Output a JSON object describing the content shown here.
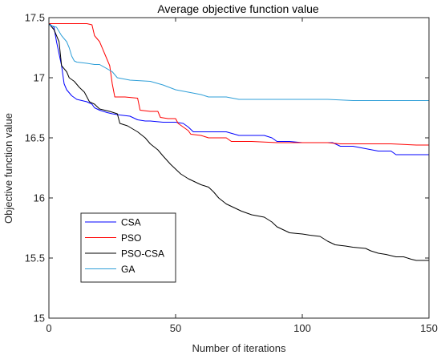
{
  "chart_data": {
    "type": "line",
    "title": "Average objective function value",
    "xlabel": "Number of iterations",
    "ylabel": "Objective function value",
    "xlim": [
      0,
      150
    ],
    "ylim": [
      15,
      17.5
    ],
    "xticks": [
      "0",
      "50",
      "100",
      "150"
    ],
    "yticks": [
      "15",
      "15.5",
      "16",
      "16.5",
      "17",
      "17.5"
    ],
    "grid": false,
    "legend_position": "lower-left",
    "series": [
      {
        "name": "CSA",
        "color": "#0000ff",
        "points": [
          [
            0,
            17.45
          ],
          [
            2,
            17.42
          ],
          [
            3,
            17.3
          ],
          [
            5,
            17.1
          ],
          [
            6,
            16.95
          ],
          [
            7,
            16.9
          ],
          [
            9,
            16.85
          ],
          [
            11,
            16.82
          ],
          [
            13,
            16.81
          ],
          [
            15,
            16.8
          ],
          [
            17,
            16.78
          ],
          [
            18,
            16.75
          ],
          [
            20,
            16.73
          ],
          [
            23,
            16.71
          ],
          [
            25,
            16.7
          ],
          [
            28,
            16.69
          ],
          [
            32,
            16.68
          ],
          [
            35,
            16.65
          ],
          [
            38,
            16.64
          ],
          [
            40,
            16.64
          ],
          [
            45,
            16.63
          ],
          [
            50,
            16.63
          ],
          [
            53,
            16.62
          ],
          [
            55,
            16.59
          ],
          [
            57,
            16.55
          ],
          [
            60,
            16.55
          ],
          [
            65,
            16.55
          ],
          [
            70,
            16.55
          ],
          [
            75,
            16.52
          ],
          [
            85,
            16.52
          ],
          [
            88,
            16.5
          ],
          [
            90,
            16.47
          ],
          [
            95,
            16.47
          ],
          [
            100,
            16.46
          ],
          [
            112,
            16.46
          ],
          [
            115,
            16.43
          ],
          [
            120,
            16.43
          ],
          [
            125,
            16.41
          ],
          [
            130,
            16.39
          ],
          [
            135,
            16.39
          ],
          [
            137,
            16.36
          ],
          [
            140,
            16.36
          ],
          [
            145,
            16.36
          ],
          [
            150,
            16.36
          ]
        ]
      },
      {
        "name": "PSO",
        "color": "#ff0000",
        "points": [
          [
            0,
            17.45
          ],
          [
            5,
            17.45
          ],
          [
            10,
            17.45
          ],
          [
            15,
            17.45
          ],
          [
            17,
            17.44
          ],
          [
            18,
            17.35
          ],
          [
            20,
            17.3
          ],
          [
            22,
            17.2
          ],
          [
            24,
            17.1
          ],
          [
            25,
            16.95
          ],
          [
            26,
            16.84
          ],
          [
            30,
            16.84
          ],
          [
            35,
            16.83
          ],
          [
            36,
            16.73
          ],
          [
            40,
            16.72
          ],
          [
            43,
            16.72
          ],
          [
            44,
            16.67
          ],
          [
            47,
            16.66
          ],
          [
            50,
            16.66
          ],
          [
            51,
            16.62
          ],
          [
            55,
            16.56
          ],
          [
            56,
            16.53
          ],
          [
            60,
            16.52
          ],
          [
            63,
            16.5
          ],
          [
            70,
            16.5
          ],
          [
            72,
            16.47
          ],
          [
            80,
            16.47
          ],
          [
            90,
            16.46
          ],
          [
            100,
            16.46
          ],
          [
            110,
            16.46
          ],
          [
            115,
            16.45
          ],
          [
            125,
            16.45
          ],
          [
            135,
            16.45
          ],
          [
            145,
            16.44
          ],
          [
            150,
            16.44
          ]
        ]
      },
      {
        "name": "PSO-CSA",
        "color": "#000000",
        "points": [
          [
            0,
            17.45
          ],
          [
            2,
            17.4
          ],
          [
            4,
            17.3
          ],
          [
            5,
            17.1
          ],
          [
            7,
            17.05
          ],
          [
            8,
            17.0
          ],
          [
            10,
            16.97
          ],
          [
            12,
            16.92
          ],
          [
            14,
            16.88
          ],
          [
            16,
            16.8
          ],
          [
            18,
            16.78
          ],
          [
            20,
            16.74
          ],
          [
            24,
            16.72
          ],
          [
            27,
            16.7
          ],
          [
            28,
            16.62
          ],
          [
            31,
            16.6
          ],
          [
            35,
            16.55
          ],
          [
            38,
            16.5
          ],
          [
            40,
            16.45
          ],
          [
            43,
            16.4
          ],
          [
            45,
            16.35
          ],
          [
            48,
            16.28
          ],
          [
            50,
            16.24
          ],
          [
            52,
            16.2
          ],
          [
            55,
            16.16
          ],
          [
            58,
            16.13
          ],
          [
            60,
            16.11
          ],
          [
            63,
            16.09
          ],
          [
            65,
            16.05
          ],
          [
            67,
            16.0
          ],
          [
            70,
            15.95
          ],
          [
            73,
            15.92
          ],
          [
            76,
            15.89
          ],
          [
            80,
            15.86
          ],
          [
            85,
            15.84
          ],
          [
            88,
            15.8
          ],
          [
            90,
            15.76
          ],
          [
            93,
            15.73
          ],
          [
            95,
            15.71
          ],
          [
            100,
            15.7
          ],
          [
            103,
            15.69
          ],
          [
            107,
            15.68
          ],
          [
            110,
            15.64
          ],
          [
            113,
            15.61
          ],
          [
            117,
            15.6
          ],
          [
            120,
            15.59
          ],
          [
            125,
            15.58
          ],
          [
            127,
            15.56
          ],
          [
            130,
            15.54
          ],
          [
            133,
            15.53
          ],
          [
            137,
            15.51
          ],
          [
            140,
            15.51
          ],
          [
            143,
            15.49
          ],
          [
            145,
            15.48
          ],
          [
            150,
            15.48
          ]
        ]
      },
      {
        "name": "GA",
        "color": "#2f9fd8",
        "points": [
          [
            0,
            17.44
          ],
          [
            3,
            17.42
          ],
          [
            5,
            17.35
          ],
          [
            7,
            17.3
          ],
          [
            8,
            17.25
          ],
          [
            9,
            17.18
          ],
          [
            10,
            17.14
          ],
          [
            11,
            17.13
          ],
          [
            15,
            17.12
          ],
          [
            18,
            17.11
          ],
          [
            20,
            17.11
          ],
          [
            25,
            17.05
          ],
          [
            27,
            17.0
          ],
          [
            32,
            16.98
          ],
          [
            40,
            16.97
          ],
          [
            45,
            16.94
          ],
          [
            50,
            16.9
          ],
          [
            55,
            16.88
          ],
          [
            60,
            16.86
          ],
          [
            63,
            16.84
          ],
          [
            70,
            16.84
          ],
          [
            75,
            16.82
          ],
          [
            90,
            16.82
          ],
          [
            100,
            16.82
          ],
          [
            110,
            16.82
          ],
          [
            120,
            16.81
          ],
          [
            130,
            16.81
          ],
          [
            140,
            16.81
          ],
          [
            150,
            16.81
          ]
        ]
      }
    ]
  }
}
